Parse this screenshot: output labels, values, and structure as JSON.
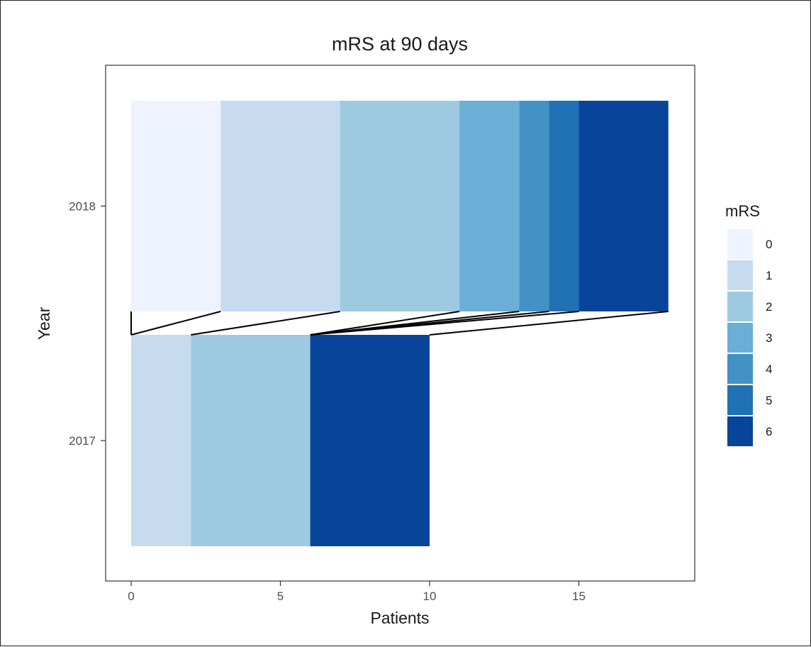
{
  "chart_data": {
    "type": "bar",
    "orientation": "horizontal",
    "stacked": true,
    "title": "mRS at 90 days",
    "xlabel": "Patients",
    "ylabel": "Year",
    "xlim": [
      0,
      18
    ],
    "x_ticks": [
      "0",
      "5",
      "10",
      "15"
    ],
    "x_tick_values": [
      0,
      5,
      10,
      15
    ],
    "categories": [
      "2018",
      "2017"
    ],
    "legend": {
      "title": "mRS",
      "position": "right",
      "entries": [
        "0",
        "1",
        "2",
        "3",
        "4",
        "5",
        "6"
      ]
    },
    "colors": [
      "#eff3ff",
      "#c6dbef",
      "#9ecae1",
      "#6baed6",
      "#4292c6",
      "#2171b5",
      "#08459a"
    ],
    "series": [
      {
        "name": "0",
        "values": [
          3,
          0
        ]
      },
      {
        "name": "1",
        "values": [
          4,
          2
        ]
      },
      {
        "name": "2",
        "values": [
          4,
          4
        ]
      },
      {
        "name": "3",
        "values": [
          2,
          0
        ]
      },
      {
        "name": "4",
        "values": [
          1,
          0
        ]
      },
      {
        "name": "5",
        "values": [
          1,
          0
        ]
      },
      {
        "name": "6",
        "values": [
          3,
          4
        ]
      }
    ],
    "connector_lines": true,
    "grid": false
  }
}
